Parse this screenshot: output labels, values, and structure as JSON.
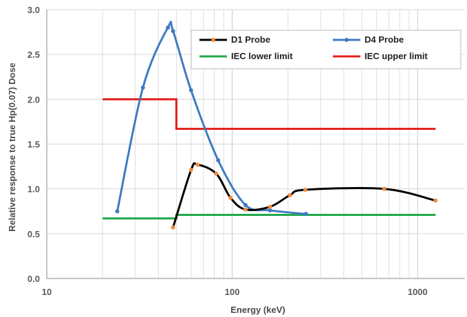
{
  "chart_data": {
    "type": "line",
    "xscale": "log",
    "xlabel": "Energy (keV)",
    "ylabel": "Relative response to true Hp(0.07) Dose",
    "xlim": [
      10,
      1800
    ],
    "ylim": [
      0,
      3.0
    ],
    "xticks": [
      {
        "value": 10,
        "label": "10"
      },
      {
        "value": 100,
        "label": "100"
      },
      {
        "value": 1000,
        "label": "1000"
      }
    ],
    "yticks": [
      {
        "value": 0,
        "label": "0.0"
      },
      {
        "value": 0.5,
        "label": "0.5"
      },
      {
        "value": 1.0,
        "label": "1.0"
      },
      {
        "value": 1.5,
        "label": "1.5"
      },
      {
        "value": 2.0,
        "label": "2.0"
      },
      {
        "value": 2.5,
        "label": "2.5"
      },
      {
        "value": 3.0,
        "label": "3.0"
      }
    ],
    "grid": true,
    "legend_position": "top-right",
    "series": [
      {
        "name": "D1 Probe",
        "color": "#000000",
        "marker_color": "#f08a3c",
        "points": [
          [
            48,
            0.57
          ],
          [
            60,
            1.21
          ],
          [
            65,
            1.27
          ],
          [
            82,
            1.17
          ],
          [
            98,
            0.9
          ],
          [
            118,
            0.77
          ],
          [
            160,
            0.8
          ],
          [
            205,
            0.93
          ],
          [
            248,
            0.99
          ],
          [
            660,
            1.0
          ],
          [
            1250,
            0.87
          ]
        ]
      },
      {
        "name": "D4 Probe",
        "color": "#3f7bc2",
        "marker_color": "#3f7bc2",
        "points": [
          [
            24,
            0.75
          ],
          [
            33,
            2.13
          ],
          [
            45,
            2.8
          ],
          [
            48,
            2.76
          ],
          [
            60,
            2.1
          ],
          [
            84,
            1.32
          ],
          [
            118,
            0.82
          ],
          [
            160,
            0.76
          ],
          [
            250,
            0.72
          ]
        ]
      },
      {
        "name": "IEC lower limit",
        "color": "#22a84a",
        "step": true,
        "points": [
          [
            20,
            0.67
          ],
          [
            50,
            0.67
          ],
          [
            50,
            0.71
          ],
          [
            1250,
            0.71
          ]
        ]
      },
      {
        "name": "IEC upper limit",
        "color": "#e0201b",
        "step": true,
        "points": [
          [
            20,
            2.0
          ],
          [
            50,
            2.0
          ],
          [
            50,
            1.67
          ],
          [
            1250,
            1.67
          ]
        ]
      }
    ]
  }
}
